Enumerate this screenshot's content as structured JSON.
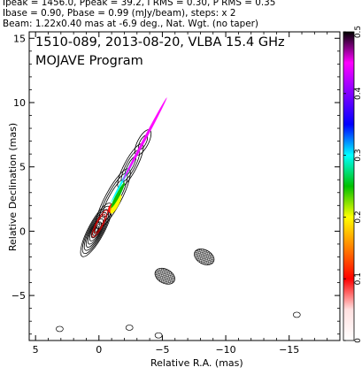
{
  "header": {
    "line1": "Ipeak = 1456.0, Ppeak = 39.2, I RMS = 0.30, P RMS = 0.35",
    "line2": "Ibase = 0.90, Pbase = 0.99 (mJy/beam), steps: x 2",
    "line3": "Beam: 1.22x0.40 mas at -6.9 deg., Nat. Wgt. (no taper)"
  },
  "chart_data": {
    "type": "heatmap",
    "title": "1510-089, 2013-08-20, VLBA 15.4 GHz",
    "subtitle": "MOJAVE Program",
    "xlabel": "Relative R.A. (mas)",
    "ylabel": "Relative Declination (mas)",
    "xlim": [
      5.5,
      -19
    ],
    "ylim": [
      -8.5,
      15.5
    ],
    "x_ticks": [
      5,
      0,
      -5,
      -10,
      -15
    ],
    "x_tick_labels": [
      "5",
      "0",
      "−5",
      "−10",
      "−15"
    ],
    "y_ticks": [
      15,
      10,
      5,
      0,
      -5
    ],
    "y_tick_labels": [
      "15",
      "10",
      "5",
      "0",
      "−5"
    ],
    "colorbar": {
      "range": [
        0,
        0.5
      ],
      "ticks": [
        0,
        0.1,
        0.2,
        0.3,
        0.4,
        0.5
      ],
      "tick_labels": [
        "0",
        "0.1",
        "0.2",
        "0.3",
        "0.4",
        "0.5"
      ],
      "colors": [
        "#ffffff",
        "#ffe0e0",
        "#ff0000",
        "#ff8000",
        "#ffff00",
        "#00c000",
        "#00ffff",
        "#0000ff",
        "#8000ff",
        "#ff00ff",
        "#000000"
      ]
    },
    "features": {
      "core": {
        "x": 0.2,
        "y": 0.1
      },
      "jet_components": [
        {
          "x": -1.5,
          "y": 1.8
        },
        {
          "x": -2.5,
          "y": 5.5
        },
        {
          "x": -3.3,
          "y": 8.5
        }
      ],
      "hatched_regions": [
        {
          "x": -5.2,
          "y": -3.5
        },
        {
          "x": -8.3,
          "y": -2.0
        }
      ],
      "noise_features": [
        {
          "x": 3.1,
          "y": -7.6
        },
        {
          "x": -2.4,
          "y": -7.5
        },
        {
          "x": -4.7,
          "y": -8.1
        },
        {
          "x": -15.6,
          "y": -6.5
        }
      ]
    }
  }
}
